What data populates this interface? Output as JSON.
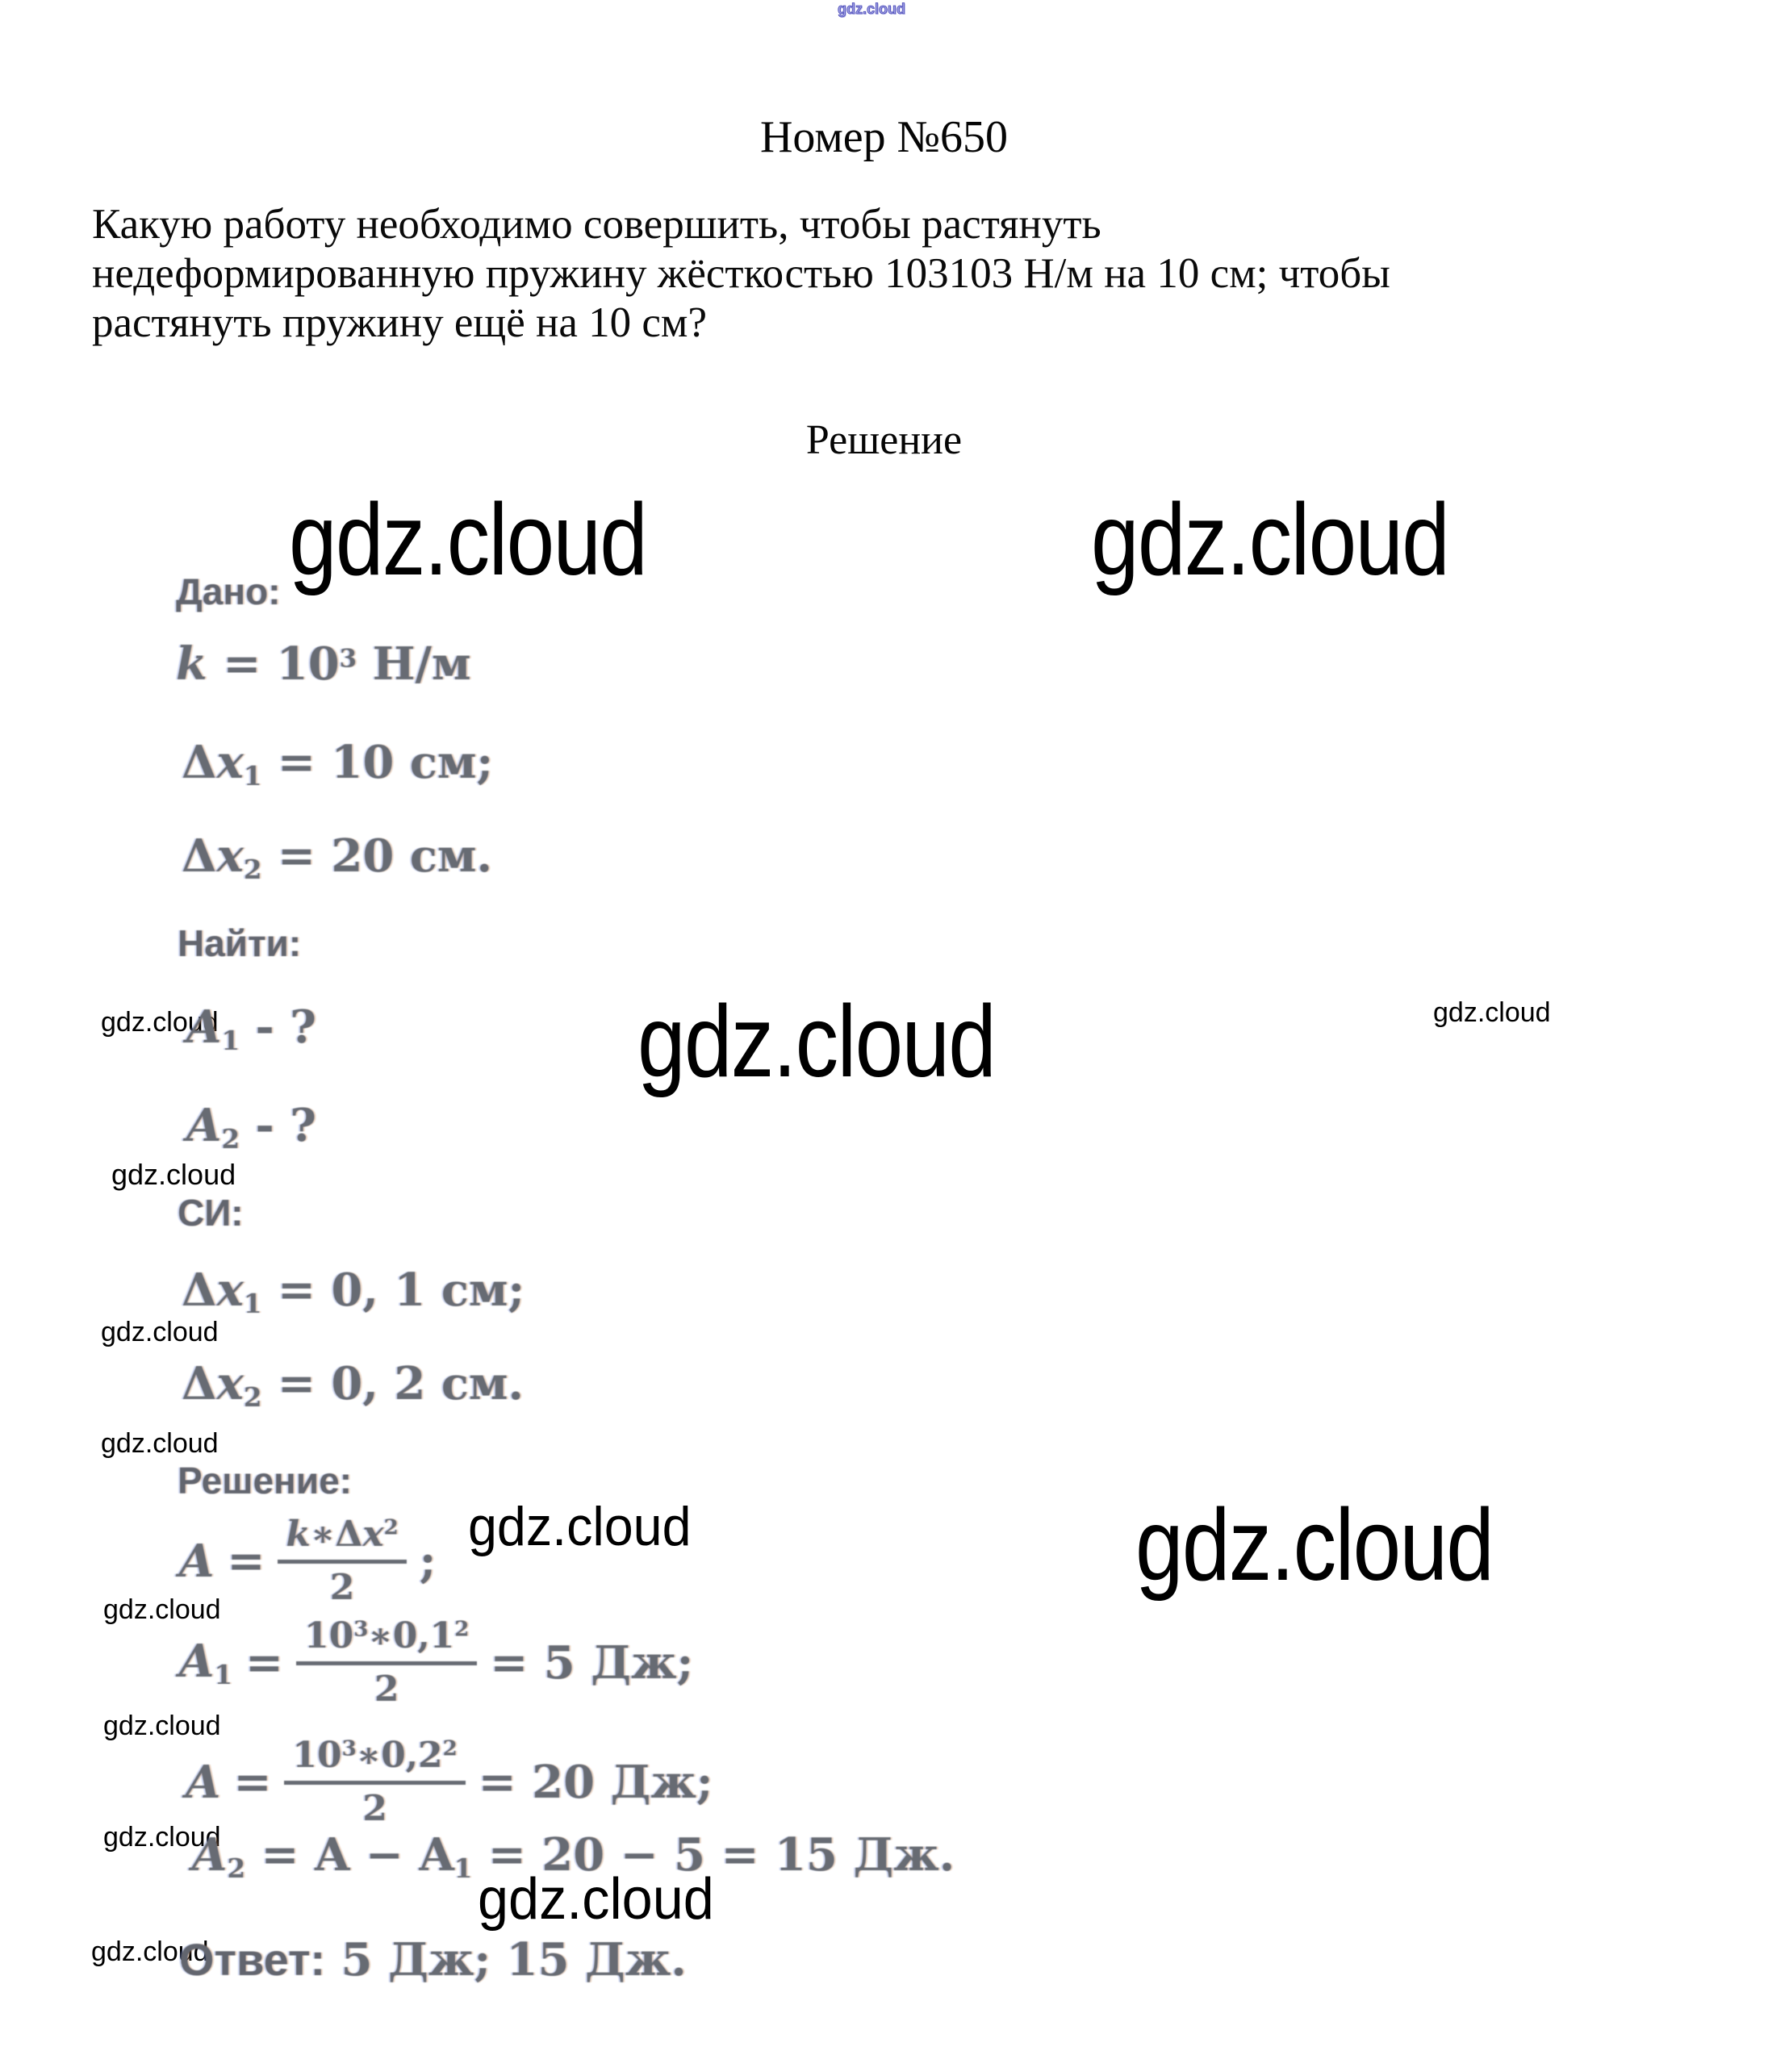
{
  "watermark": {
    "text": "gdz.cloud"
  },
  "header": {
    "title": "Номер №650"
  },
  "problem": {
    "line1": "Какую работу необходимо совершить, чтобы растянуть",
    "line2": "недеформированную пружину жёсткостью 103103 Н/м на 10 см; чтобы",
    "line3": "растянуть пружину ещё на 10 см?"
  },
  "solution": {
    "heading": "Решение",
    "given_label": "Дано:",
    "find_label": "Найти:",
    "si_label": "СИ:",
    "solution_label": "Решение:",
    "answer_label": "Ответ:",
    "answer_value": "5 Дж; 15 Дж."
  },
  "given": {
    "k_var": "k",
    "k_rhs": "= 10",
    "k_exp": "3",
    "k_unit": "Н/м",
    "dx1_delta": "Δ",
    "dx1_var": "x",
    "dx1_sub": "1",
    "dx1_rhs": "= 10 см;",
    "dx2_delta": "Δ",
    "dx2_var": "x",
    "dx2_sub": "2",
    "dx2_rhs": "= 20 см."
  },
  "find": {
    "a1_var": "A",
    "a1_sub": "1",
    "a1_rhs": "- ?",
    "a2_var": "A",
    "a2_sub": "2",
    "a2_rhs": "- ?"
  },
  "si": {
    "dx1_delta": "Δ",
    "dx1_var": "x",
    "dx1_sub": "1",
    "dx1_rhs": "= 0, 1 см;",
    "dx2_delta": "Δ",
    "dx2_var": "x",
    "dx2_sub": "2",
    "dx2_rhs": "= 0, 2 см."
  },
  "work": {
    "f1_lhs": "A",
    "f1_eq": "=",
    "f1_num_k": "k",
    "f1_num_mul": "∗Δ",
    "f1_num_x": "x",
    "f1_num_exp": "2",
    "f1_den": "2",
    "f1_tail": ";",
    "f2_lhs": "A",
    "f2_sub": "1",
    "f2_eq": "=",
    "f2_num_base": "10",
    "f2_num_exp1": "3",
    "f2_num_mid": "∗0,1",
    "f2_num_exp2": "2",
    "f2_den": "2",
    "f2_result": "= 5 Дж;",
    "f3_lhs": "A",
    "f3_eq": "=",
    "f3_num_base": "10",
    "f3_num_exp1": "3",
    "f3_num_mid": "∗0,2",
    "f3_num_exp2": "2",
    "f3_den": "2",
    "f3_result": "= 20 Дж;",
    "f4_lhs": "A",
    "f4_lhs_sub": "2",
    "f4_mid": "= A − A",
    "f4_mid_sub": "1",
    "f4_rest": "= 20 − 5 = 15 Дж."
  }
}
